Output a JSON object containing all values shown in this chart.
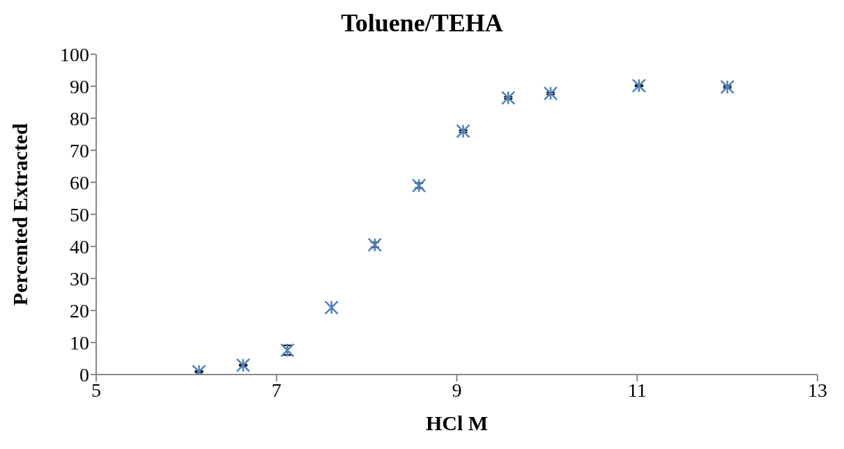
{
  "chart_data": {
    "type": "scatter",
    "title": "Toluene/TEHA",
    "xlabel": "HCl M",
    "ylabel": "Percented Extracted",
    "x": [
      6.14,
      6.63,
      7.12,
      7.61,
      8.09,
      8.58,
      9.07,
      9.57,
      10.04,
      11.02,
      12.0
    ],
    "series": [
      {
        "color": "#4f81bd",
        "values": [
          0.9,
          2.9,
          7.6,
          20.9,
          40.5,
          59.0,
          76.0,
          86.4,
          87.8,
          90.2,
          89.8
        ],
        "errors": [
          0.2,
          0.2,
          1.5,
          null,
          0.8,
          0.8,
          0.3,
          0.3,
          0.3,
          0.2,
          0.3
        ]
      }
    ],
    "xlim": [
      5,
      13
    ],
    "xticks": [
      5,
      7,
      9,
      11,
      13
    ],
    "ylim": [
      0,
      100
    ],
    "yticks": [
      0,
      10,
      20,
      30,
      40,
      50,
      60,
      70,
      80,
      90,
      100
    ],
    "grid": false,
    "legend": false,
    "marker": "cross"
  }
}
